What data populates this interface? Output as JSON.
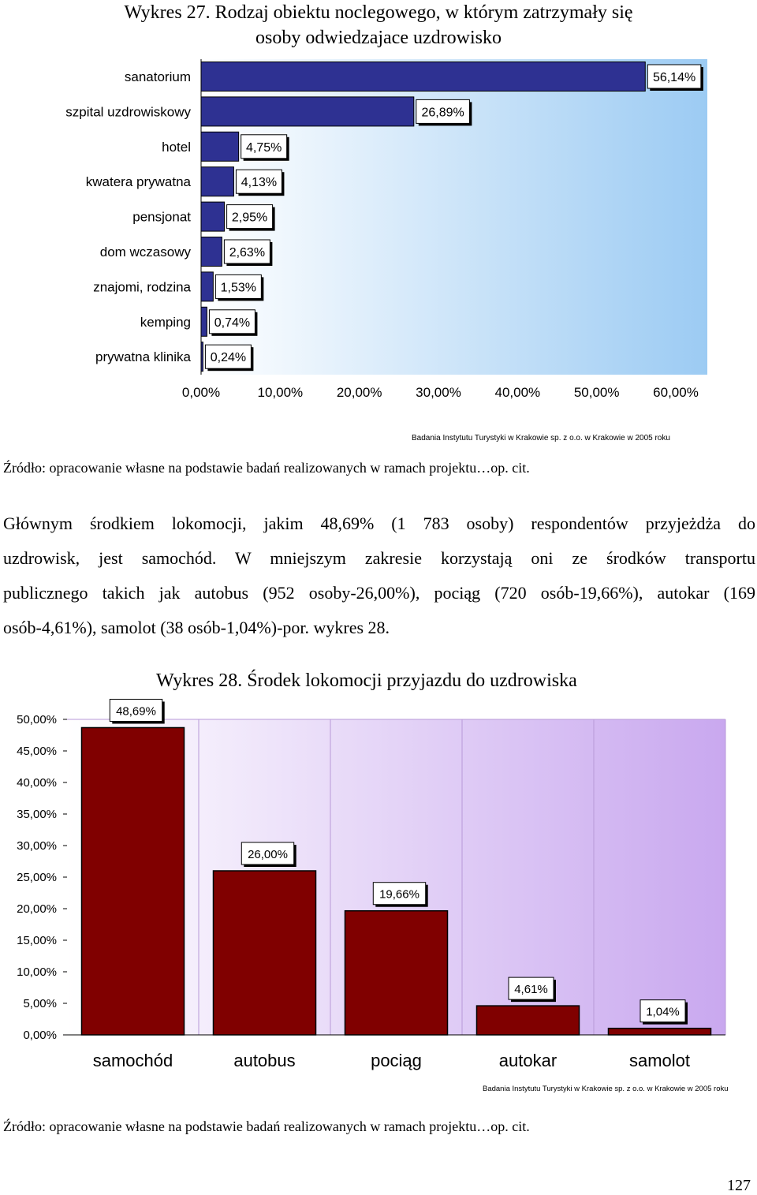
{
  "charts": {
    "chart1": {
      "title_line1": "Wykres 27. Rodzaj obiektu noclegowego, w którym zatrzymały się",
      "title_line2": "osoby odwiedzajace uzdrowisko",
      "credit": "Badania Instytutu Turystyki w Krakowie sp. z o.o. w Krakowie w 2005 roku"
    },
    "chart2": {
      "title": "Wykres 28. Środek lokomocji przyjazdu do uzdrowiska",
      "credit": "Badania Instytutu Turystyki w Krakowie sp. z o.o. w Krakowie w 2005 roku"
    }
  },
  "chart_data": [
    {
      "type": "bar",
      "orientation": "horizontal",
      "title": "Wykres 27. Rodzaj obiektu noclegowego, w którym zatrzymały się osoby odwiedzajace uzdrowisko",
      "categories": [
        "sanatorium",
        "szpital uzdrowiskowy",
        "hotel",
        "kwatera prywatna",
        "pensjonat",
        "dom wczasowy",
        "znajomi, rodzina",
        "kemping",
        "prywatna klinika"
      ],
      "values": [
        56.14,
        26.89,
        4.75,
        4.13,
        2.95,
        2.63,
        1.53,
        0.74,
        0.24
      ],
      "data_labels": [
        "56,14%",
        "26,89%",
        "4,75%",
        "4,13%",
        "2,95%",
        "2,63%",
        "1,53%",
        "0,74%",
        "0,24%"
      ],
      "x_ticks": [
        "0,00%",
        "10,00%",
        "20,00%",
        "30,00%",
        "40,00%",
        "50,00%",
        "60,00%"
      ],
      "xlim": [
        0,
        60
      ],
      "bar_color": "#2e3192",
      "background": "gradient blue",
      "grid": false
    },
    {
      "type": "bar",
      "orientation": "vertical",
      "title": "Wykres 28. Środek lokomocji przyjazdu do uzdrowiska",
      "categories": [
        "samochód",
        "autobus",
        "pociąg",
        "autokar",
        "samolot"
      ],
      "values": [
        48.69,
        26.0,
        19.66,
        4.61,
        1.04
      ],
      "data_labels": [
        "48,69%",
        "26,00%",
        "19,66%",
        "4,61%",
        "1,04%"
      ],
      "y_ticks": [
        "0,00%",
        "5,00%",
        "10,00%",
        "15,00%",
        "20,00%",
        "25,00%",
        "30,00%",
        "35,00%",
        "40,00%",
        "45,00%",
        "50,00%"
      ],
      "ylim": [
        0,
        50
      ],
      "bar_color": "#800000",
      "background": "gradient violet",
      "grid": true
    }
  ],
  "text": {
    "source1": "Źródło: opracowanie własne na podstawie badań realizowanych w ramach projektu…op. cit.",
    "paragraph_lines": [
      "Głównym środkiem lokomocji, jakim 48,69% (1 783 osoby) respondentów przyjeżdża do",
      "uzdrowisk, jest samochód. W mniejszym zakresie korzystają oni ze środków transportu",
      "publicznego takich jak autobus (952 osoby-26,00%), pociąg (720 osób-19,66%), autokar (169",
      "osób-4,61%), samolot (38 osób-1,04%)-por. wykres 28."
    ],
    "source2": "Źródło: opracowanie własne na podstawie badań realizowanych w ramach projektu…op. cit.",
    "page_number": "127"
  },
  "colors": {
    "chart1_bar": "#2e3192",
    "chart2_bar": "#800000",
    "chart1_bg_left": "#ffffff",
    "chart1_bg_right": "#9ccbf3",
    "chart2_bg_left": "#ffffff",
    "chart2_bg_right": "#c9a8ef"
  }
}
